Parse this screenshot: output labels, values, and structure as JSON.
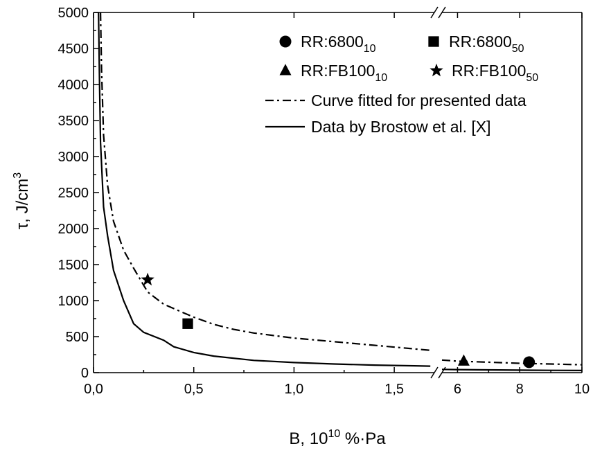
{
  "chart_data": {
    "type": "scatter",
    "title": "",
    "xlabel_main": "B, 10",
    "xlabel_sup": "10",
    "xlabel_tail": " %·Pa",
    "ylabel_main": "τ, J/cm",
    "ylabel_sup": "3",
    "ylim": [
      0,
      5000
    ],
    "yticks": [
      0,
      500,
      1000,
      1500,
      2000,
      2500,
      3000,
      3500,
      4000,
      4500,
      5000
    ],
    "x_segment1": {
      "range": [
        0.0,
        1.7
      ],
      "ticks": [
        0.0,
        0.5,
        1.0,
        1.5
      ],
      "tick_labels": [
        "0,0",
        "0,5",
        "1,0",
        "1,5"
      ]
    },
    "x_segment2": {
      "range": [
        5.5,
        10.0
      ],
      "ticks": [
        6,
        8,
        10
      ],
      "tick_labels": [
        "6",
        "8",
        "10"
      ]
    },
    "axis_break": true,
    "legend_position": "top-right",
    "series": [
      {
        "label": "RR:6800",
        "sub": "10",
        "marker": "circle",
        "points": [
          [
            8.3,
            145
          ]
        ]
      },
      {
        "label": "RR:6800",
        "sub": "50",
        "marker": "square",
        "points": [
          [
            0.47,
            680
          ]
        ]
      },
      {
        "label": "RR:FB100",
        "sub": "10",
        "marker": "triangle",
        "points": [
          [
            6.2,
            160
          ]
        ]
      },
      {
        "label": "RR:FB100",
        "sub": "50",
        "marker": "star",
        "points": [
          [
            0.27,
            1290
          ]
        ]
      }
    ],
    "lines": [
      {
        "label": "Curve fitted for presented data",
        "style": "dash-dot",
        "segment1": [
          [
            0.035,
            5000
          ],
          [
            0.04,
            4200
          ],
          [
            0.05,
            3300
          ],
          [
            0.07,
            2600
          ],
          [
            0.1,
            2100
          ],
          [
            0.15,
            1700
          ],
          [
            0.2,
            1450
          ],
          [
            0.27,
            1120
          ],
          [
            0.35,
            950
          ],
          [
            0.45,
            830
          ],
          [
            0.5,
            770
          ],
          [
            0.6,
            670
          ],
          [
            0.7,
            600
          ],
          [
            0.8,
            550
          ],
          [
            1.0,
            480
          ],
          [
            1.2,
            430
          ],
          [
            1.4,
            380
          ],
          [
            1.6,
            330
          ],
          [
            1.68,
            310
          ]
        ],
        "segment2": [
          [
            5.5,
            175
          ],
          [
            6,
            160
          ],
          [
            7,
            145
          ],
          [
            8,
            130
          ],
          [
            9,
            120
          ],
          [
            10,
            110
          ]
        ]
      },
      {
        "label": "Data by Brostow et al. [X]",
        "style": "solid",
        "segment1": [
          [
            0.025,
            5000
          ],
          [
            0.03,
            4000
          ],
          [
            0.035,
            3200
          ],
          [
            0.05,
            2300
          ],
          [
            0.07,
            1900
          ],
          [
            0.1,
            1420
          ],
          [
            0.15,
            1000
          ],
          [
            0.2,
            680
          ],
          [
            0.25,
            560
          ],
          [
            0.35,
            450
          ],
          [
            0.4,
            360
          ],
          [
            0.5,
            280
          ],
          [
            0.6,
            230
          ],
          [
            0.8,
            170
          ],
          [
            1.0,
            140
          ],
          [
            1.2,
            120
          ],
          [
            1.4,
            105
          ],
          [
            1.6,
            95
          ],
          [
            1.68,
            90
          ]
        ],
        "segment2": [
          [
            5.5,
            45
          ],
          [
            6,
            42
          ],
          [
            7,
            38
          ],
          [
            8,
            35
          ],
          [
            9,
            32
          ],
          [
            10,
            30
          ]
        ]
      }
    ]
  }
}
